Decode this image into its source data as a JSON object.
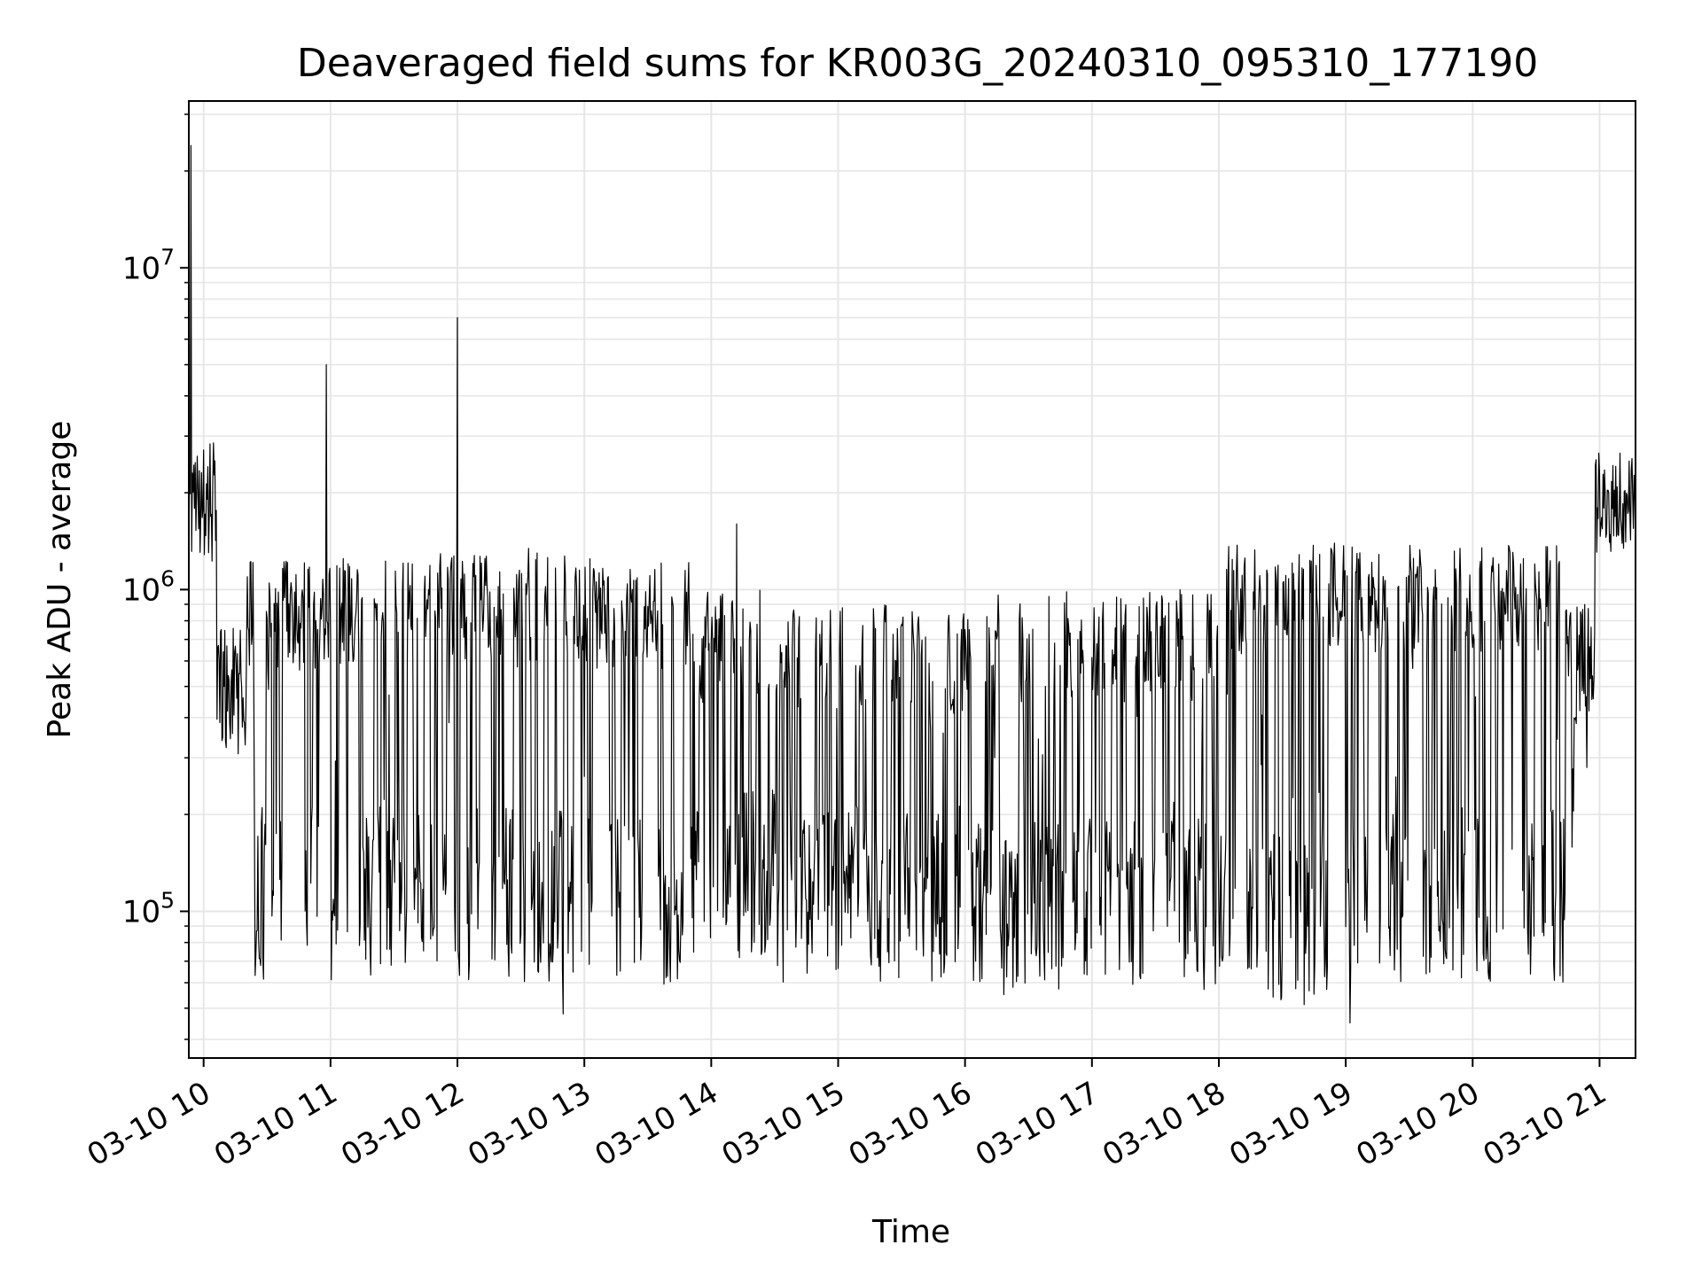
{
  "chart_data": {
    "type": "line",
    "title": "Deaveraged field sums for KR003G_20240310_095310_177190",
    "xlabel": "Time",
    "ylabel": "Peak ADU - average",
    "x_ticks": [
      "03-10 10",
      "03-10 11",
      "03-10 12",
      "03-10 13",
      "03-10 14",
      "03-10 15",
      "03-10 16",
      "03-10 17",
      "03-10 18",
      "03-10 19",
      "03-10 20",
      "03-10 21"
    ],
    "x_range": [
      "2024-03-10 09:53",
      "2024-03-10 21:17"
    ],
    "y_scale": "log",
    "y_ticks": [
      {
        "value": 100000,
        "base": "10",
        "exp": "5"
      },
      {
        "value": 1000000,
        "base": "10",
        "exp": "6"
      },
      {
        "value": 10000000,
        "base": "10",
        "exp": "7"
      }
    ],
    "ylim": [
      35000,
      33000000
    ],
    "grid": true,
    "line_color": "#000000",
    "grid_color": "#e6e6e6",
    "series": [
      {
        "x_start": "2024-03-10 09:53",
        "x_end": "2024-03-10 21:17",
        "points_per_hour": 180,
        "segments": [
          {
            "from": "2024-03-10 09:53",
            "to": "2024-03-10 10:06",
            "low": 1200000,
            "high": 2900000
          },
          {
            "from": "2024-03-10 10:06",
            "to": "2024-03-10 10:20",
            "low": 300000,
            "high": 800000
          },
          {
            "from": "2024-03-10 10:20",
            "to": "2024-03-10 11:20",
            "low": 60000,
            "high": 1250000
          },
          {
            "from": "2024-03-10 11:20",
            "to": "2024-03-10 12:00",
            "low": 65000,
            "high": 1300000
          },
          {
            "from": "2024-03-10 12:00",
            "to": "2024-03-10 13:00",
            "low": 60000,
            "high": 1350000
          },
          {
            "from": "2024-03-10 13:00",
            "to": "2024-03-10 13:50",
            "low": 55000,
            "high": 1250000
          },
          {
            "from": "2024-03-10 13:50",
            "to": "2024-03-10 14:30",
            "low": 70000,
            "high": 1000000
          },
          {
            "from": "2024-03-10 14:30",
            "to": "2024-03-10 16:00",
            "low": 60000,
            "high": 900000
          },
          {
            "from": "2024-03-10 16:00",
            "to": "2024-03-10 18:00",
            "low": 55000,
            "high": 1000000
          },
          {
            "from": "2024-03-10 18:00",
            "to": "2024-03-10 19:00",
            "low": 50000,
            "high": 1400000
          },
          {
            "from": "2024-03-10 19:00",
            "to": "2024-03-10 20:45",
            "low": 60000,
            "high": 1400000
          },
          {
            "from": "2024-03-10 20:45",
            "to": "2024-03-10 20:58",
            "low": 150000,
            "high": 900000
          },
          {
            "from": "2024-03-10 20:58",
            "to": "2024-03-10 21:17",
            "low": 1300000,
            "high": 2700000
          }
        ],
        "spikes": [
          {
            "x": "2024-03-10 09:54",
            "y": 24000000
          },
          {
            "x": "2024-03-10 10:58",
            "y": 5000000
          },
          {
            "x": "2024-03-10 12:00",
            "y": 7000000
          },
          {
            "x": "2024-03-10 14:12",
            "y": 1600000
          },
          {
            "x": "2024-03-10 12:50",
            "y": 48000
          },
          {
            "x": "2024-03-10 19:02",
            "y": 45000
          }
        ]
      }
    ]
  }
}
